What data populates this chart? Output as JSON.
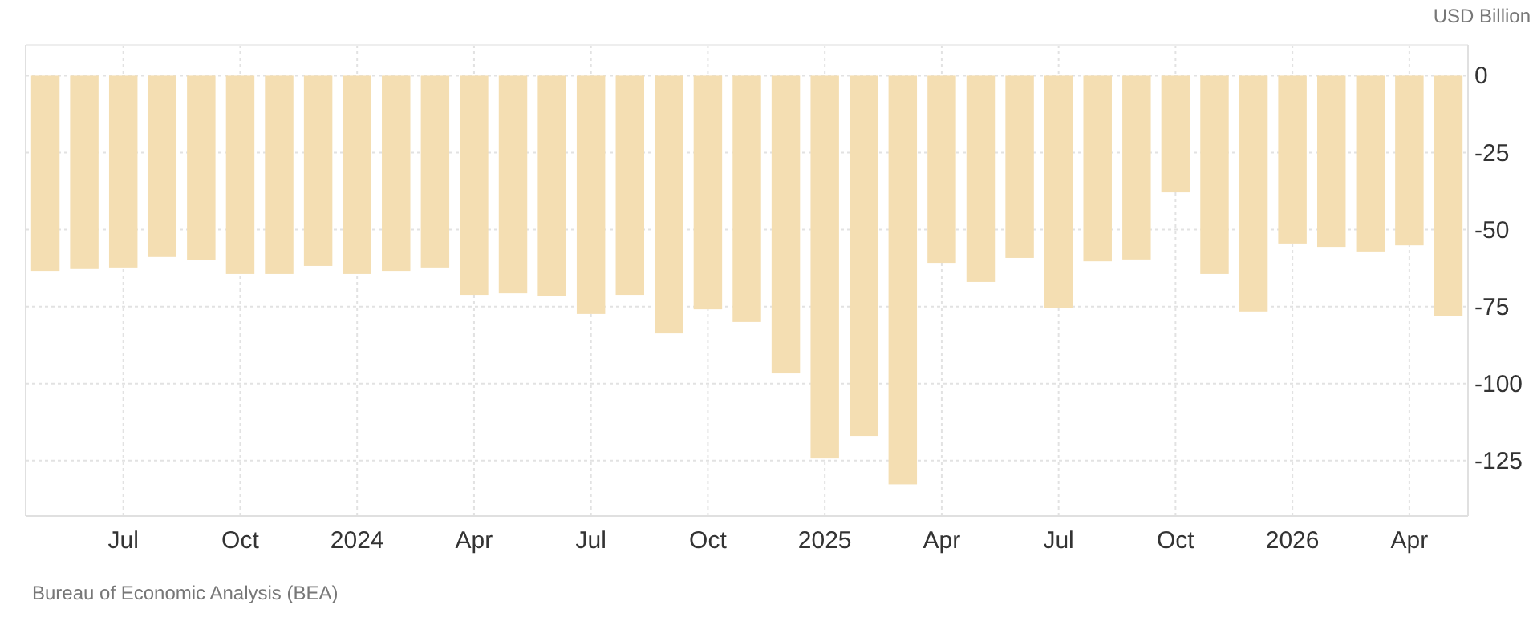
{
  "chart_data": {
    "type": "bar",
    "ylabel": "USD Billion",
    "categories": [
      null,
      null,
      "Jul",
      null,
      null,
      "Oct",
      null,
      null,
      "2024",
      null,
      null,
      "Apr",
      null,
      null,
      "Jul",
      null,
      null,
      "Oct",
      null,
      null,
      "2025",
      null,
      null,
      "Apr",
      null,
      null,
      "Jul",
      null,
      null,
      "Oct",
      null,
      null,
      "2026",
      null,
      null,
      "Apr",
      null
    ],
    "values": [
      -63.4,
      -62.8,
      -62.3,
      -58.9,
      -59.9,
      -64.4,
      -64.4,
      -61.8,
      -64.4,
      -63.4,
      -62.3,
      -71.2,
      -70.7,
      -71.7,
      -77.4,
      -71.2,
      -83.7,
      -75.9,
      -80.0,
      -96.7,
      -124.3,
      -117.0,
      -132.7,
      -60.8,
      -67.0,
      -59.2,
      -75.4,
      -60.3,
      -59.7,
      -37.9,
      -64.4,
      -76.6,
      -54.5,
      -55.6,
      -57.1,
      -55.1,
      -78.0
    ],
    "color": "#f4deb2",
    "ylim": [
      -143,
      10
    ],
    "yticks": [
      0,
      -25,
      -50,
      -75,
      -100,
      -125
    ],
    "grid": true,
    "annotations": [
      "Bureau of Economic Analysis (BEA)"
    ]
  }
}
